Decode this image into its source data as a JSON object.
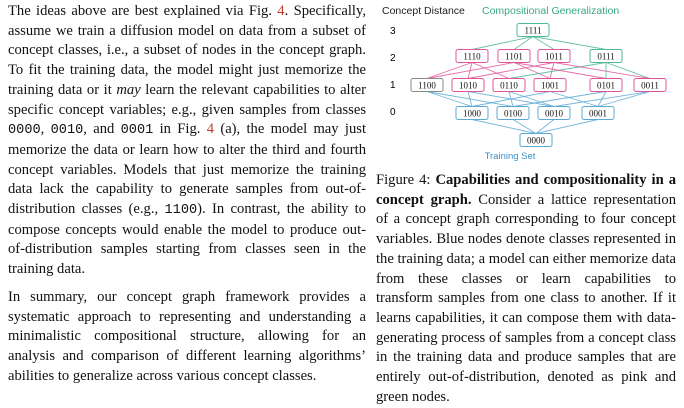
{
  "left": {
    "p1": [
      {
        "t": "text",
        "v": "The ideas above are best explained via Fig. "
      },
      {
        "t": "link",
        "v": "4"
      },
      {
        "t": "text",
        "v": ". Specifically, assume we train a diffusion model on data from a subset of concept classes, i.e., a subset of nodes in the concept graph. To fit the training data, the model might just memorize the training data or it "
      },
      {
        "t": "em",
        "v": "may"
      },
      {
        "t": "text",
        "v": " learn the relevant capabilities to alter specific concept variables; e.g., given samples from classes "
      },
      {
        "t": "mono",
        "v": "0000"
      },
      {
        "t": "text",
        "v": ", "
      },
      {
        "t": "mono",
        "v": "0010"
      },
      {
        "t": "text",
        "v": ", and "
      },
      {
        "t": "mono",
        "v": "0001"
      },
      {
        "t": "text",
        "v": " in Fig. "
      },
      {
        "t": "link",
        "v": "4"
      },
      {
        "t": "text",
        "v": " (a), the model may just memorize the data or learn how to alter the third and fourth concept variables. Models that just memorize the training data lack the capability to generate samples from out-of-distribution classes (e.g., "
      },
      {
        "t": "mono",
        "v": "1100"
      },
      {
        "t": "text",
        "v": "). In contrast, the ability to compose concepts would enable the model to produce out-of-distribution samples starting from classes seen in the training data."
      }
    ],
    "p2": "In summary, our concept graph framework provides a systematic approach to representing and understanding a minimalistic compositional structure, allowing for an analysis and comparison of different learning algorithms’ abilities to generalize across various concept classes."
  },
  "figure": {
    "header_left": "Concept Distance",
    "header_right": "Compositional Generalization",
    "training_label": "Training Set",
    "levels": [
      "3",
      "2",
      "1",
      "0"
    ],
    "nodes": {
      "level3": [
        "1111"
      ],
      "level2": [
        "1110",
        "1101",
        "1011",
        "0111"
      ],
      "level1": [
        "1100",
        "1010",
        "0110",
        "1001",
        "0101",
        "0011"
      ],
      "level0": [
        "1000",
        "0100",
        "0010",
        "0001"
      ],
      "root": "0000"
    },
    "colors": {
      "training": "#5aa9d6",
      "ood": "#e0559a",
      "generalization": "#4db89a",
      "neutral": "#8a8a8a"
    }
  },
  "caption": {
    "figure_label": "Figure 4: ",
    "bold_title": "Capabilities and compositionality in a concept graph.",
    "body": " Consider a lattice representation of a concept graph corresponding to four concept variables. Blue nodes denote classes represented in the training data; a model can either memorize data from these classes or learn capabilities to transform samples from one class to another. If it learns capabilities, it can compose them with data-generating process of samples from a concept class in the training data and produce samples that are entirely out-of-distribution, denoted as pink and green nodes."
  }
}
